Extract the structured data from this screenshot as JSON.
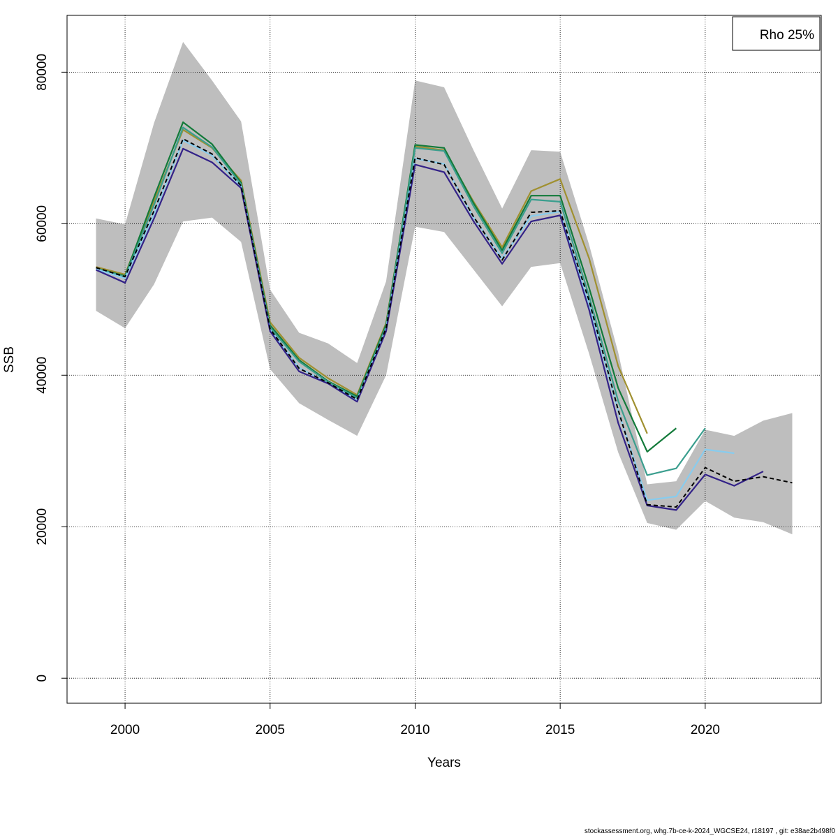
{
  "footer": "stockassessment.org, whg.7b-ce-k-2024_WGCSE24, r18197 , git: e38ae2b498f0",
  "chart_data": {
    "type": "line",
    "title": "",
    "xlabel": "Years",
    "ylabel": "SSB",
    "xlim": [
      1998,
      2024
    ],
    "ylim": [
      -3300,
      87500
    ],
    "grid": true,
    "x_ticks": [
      2000,
      2005,
      2010,
      2015,
      2020
    ],
    "y_ticks": [
      0,
      20000,
      40000,
      60000,
      80000
    ],
    "legend": {
      "position": "top-right",
      "entries": [
        "Rho 25%"
      ]
    },
    "confidence_band": {
      "color": "#bebebe",
      "x": [
        1999,
        2000,
        2001,
        2002,
        2003,
        2004,
        2005,
        2006,
        2007,
        2008,
        2009,
        2010,
        2011,
        2012,
        2013,
        2014,
        2015,
        2016,
        2017,
        2018,
        2019,
        2020,
        2021,
        2022,
        2023
      ],
      "upper": [
        60700,
        59900,
        73300,
        84000,
        78900,
        73500,
        51300,
        45600,
        44200,
        41600,
        52400,
        78900,
        78000,
        69800,
        62000,
        69700,
        69500,
        57200,
        43000,
        25600,
        26000,
        32800,
        32000,
        34000,
        35000
      ],
      "lower": [
        48500,
        46200,
        52000,
        60300,
        60800,
        57600,
        40800,
        36300,
        34100,
        32000,
        40000,
        59600,
        58900,
        54000,
        49100,
        54300,
        54800,
        42800,
        29800,
        20500,
        19600,
        23400,
        21200,
        20600,
        19000
      ]
    },
    "series": [
      {
        "color": "#000000",
        "dashed": true,
        "x": [
          1999,
          2000,
          2001,
          2002,
          2003,
          2004,
          2005,
          2006,
          2007,
          2008,
          2009,
          2010,
          2011,
          2012,
          2013,
          2014,
          2015,
          2016,
          2017,
          2018,
          2019,
          2020,
          2021,
          2022,
          2023
        ],
        "values": [
          54200,
          53000,
          61700,
          71200,
          69200,
          65000,
          46100,
          40900,
          39000,
          36800,
          46200,
          68700,
          67800,
          61000,
          55200,
          61500,
          61700,
          49800,
          35400,
          22900,
          22600,
          27800,
          26000,
          26600,
          25800
        ]
      },
      {
        "color": "#a09030",
        "x": [
          1999,
          2000,
          2001,
          2002,
          2003,
          2004,
          2005,
          2006,
          2007,
          2008,
          2009,
          2010,
          2011,
          2012,
          2013,
          2014,
          2015,
          2016,
          2017,
          2018
        ],
        "values": [
          54300,
          53300,
          63000,
          72400,
          70000,
          65700,
          47000,
          42300,
          39600,
          37400,
          46900,
          70200,
          69700,
          63000,
          56900,
          64300,
          65900,
          55400,
          41200,
          32300
        ]
      },
      {
        "color": "#137a3a",
        "x": [
          1999,
          2000,
          2001,
          2002,
          2003,
          2004,
          2005,
          2006,
          2007,
          2008,
          2009,
          2010,
          2011,
          2012,
          2013,
          2014,
          2015,
          2016,
          2017,
          2018,
          2019
        ],
        "values": [
          54100,
          53100,
          63500,
          73400,
          70500,
          65400,
          46600,
          42000,
          39200,
          37200,
          46700,
          70400,
          70000,
          62800,
          56500,
          63700,
          63700,
          51500,
          38300,
          29900,
          33000
        ]
      },
      {
        "color": "#3a9e8e",
        "x": [
          1999,
          2000,
          2001,
          2002,
          2003,
          2004,
          2005,
          2006,
          2007,
          2008,
          2009,
          2010,
          2011,
          2012,
          2013,
          2014,
          2015,
          2016,
          2017,
          2018,
          2019,
          2020
        ],
        "values": [
          54100,
          53000,
          62500,
          72700,
          70100,
          65200,
          46300,
          41800,
          39100,
          37000,
          46400,
          70000,
          69600,
          62400,
          56100,
          63200,
          62900,
          50400,
          36600,
          26800,
          27700,
          33000
        ]
      },
      {
        "color": "#88ccee",
        "x": [
          1999,
          2000,
          2001,
          2002,
          2003,
          2004,
          2005,
          2006,
          2007,
          2008,
          2009,
          2010,
          2011,
          2012,
          2013,
          2014,
          2015,
          2016,
          2017,
          2018,
          2019,
          2020,
          2021
        ],
        "values": [
          54000,
          52800,
          61300,
          71000,
          69000,
          64900,
          46000,
          41000,
          38900,
          36700,
          46100,
          68600,
          67900,
          60900,
          55400,
          61000,
          61600,
          49300,
          35300,
          23500,
          24000,
          30200,
          29700
        ]
      },
      {
        "color": "#332288",
        "x": [
          1999,
          2000,
          2001,
          2002,
          2003,
          2004,
          2005,
          2006,
          2007,
          2008,
          2009,
          2010,
          2011,
          2012,
          2013,
          2014,
          2015,
          2016,
          2017,
          2018,
          2019,
          2020,
          2021,
          2022
        ],
        "values": [
          53900,
          52200,
          60700,
          69900,
          68100,
          64700,
          45800,
          40500,
          38900,
          36500,
          45800,
          67800,
          66800,
          60400,
          54700,
          60300,
          61100,
          48600,
          33700,
          22800,
          22200,
          26900,
          25400,
          27300
        ]
      }
    ]
  }
}
